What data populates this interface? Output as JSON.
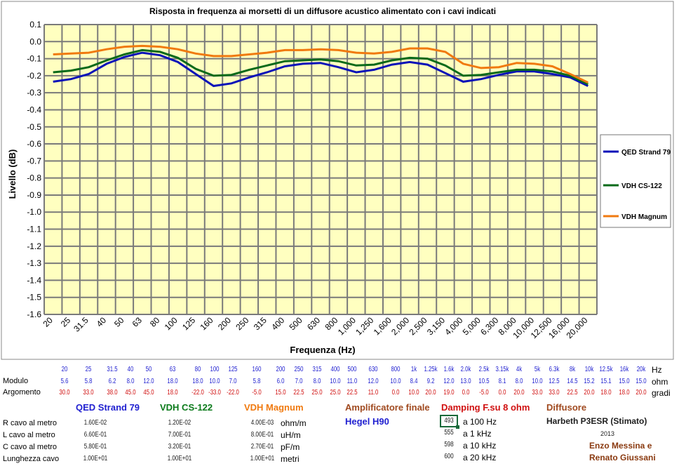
{
  "chart_data": {
    "type": "line",
    "title": "Risposta in frequenza ai morsetti di un diffusore acustico alimentato con i cavi indicati",
    "xlabel": "Frequenza (Hz)",
    "ylabel": "Livello (dB)",
    "ylim": [
      -1.6,
      0.1
    ],
    "yticks": [
      "0.1",
      "0.0",
      "-0.1",
      "-0.2",
      "-0.3",
      "-0.4",
      "-0.5",
      "-0.6",
      "-0.7",
      "-0.8",
      "-0.9",
      "-1.0",
      "-1.1",
      "-1.2",
      "-1.3",
      "-1.4",
      "-1.5",
      "-1.6"
    ],
    "categories": [
      "20",
      "25",
      "31.5",
      "40",
      "50",
      "63",
      "80",
      "100",
      "125",
      "160",
      "200",
      "250",
      "315",
      "400",
      "500",
      "630",
      "800",
      "1,000",
      "1,250",
      "1,600",
      "2,000",
      "2,500",
      "3,150",
      "4,000",
      "5,000",
      "6,300",
      "8,000",
      "10,000",
      "12,500",
      "16,000",
      "20,000"
    ],
    "grid": true,
    "legend_position": "right",
    "series": [
      {
        "name": "QED Strand 79",
        "color": "#0a12b8",
        "values": [
          -0.235,
          -0.22,
          -0.19,
          -0.13,
          -0.09,
          -0.065,
          -0.08,
          -0.12,
          -0.19,
          -0.26,
          -0.245,
          -0.21,
          -0.18,
          -0.145,
          -0.13,
          -0.125,
          -0.15,
          -0.18,
          -0.165,
          -0.135,
          -0.12,
          -0.135,
          -0.185,
          -0.235,
          -0.22,
          -0.195,
          -0.175,
          -0.175,
          -0.19,
          -0.21,
          -0.26
        ]
      },
      {
        "name": "VDH CS-122",
        "color": "#0a6a1a",
        "values": [
          -0.18,
          -0.17,
          -0.15,
          -0.11,
          -0.075,
          -0.05,
          -0.06,
          -0.095,
          -0.16,
          -0.2,
          -0.195,
          -0.165,
          -0.14,
          -0.115,
          -0.11,
          -0.105,
          -0.115,
          -0.14,
          -0.135,
          -0.11,
          -0.095,
          -0.1,
          -0.14,
          -0.2,
          -0.195,
          -0.18,
          -0.165,
          -0.165,
          -0.175,
          -0.2,
          -0.25
        ]
      },
      {
        "name": "VDH Magnum",
        "color": "#f07a10",
        "values": [
          -0.075,
          -0.07,
          -0.065,
          -0.045,
          -0.03,
          -0.025,
          -0.03,
          -0.045,
          -0.07,
          -0.085,
          -0.085,
          -0.075,
          -0.065,
          -0.05,
          -0.05,
          -0.045,
          -0.05,
          -0.065,
          -0.07,
          -0.06,
          -0.04,
          -0.04,
          -0.06,
          -0.13,
          -0.155,
          -0.15,
          -0.125,
          -0.13,
          -0.145,
          -0.19,
          -0.24
        ]
      }
    ]
  },
  "table": {
    "freq_row": [
      "20",
      "25",
      "31.5",
      "40",
      "50",
      "63",
      "80",
      "100",
      "125",
      "160",
      "200",
      "250",
      "315",
      "400",
      "500",
      "630",
      "800",
      "1k",
      "1.25k",
      "1.6k",
      "2.0k",
      "2.5k",
      "3.15k",
      "4k",
      "5k",
      "6.3k",
      "8k",
      "10k",
      "12.5k",
      "16k",
      "20k"
    ],
    "freq_unit": "Hz",
    "modulo_label": "Modulo",
    "modulo_row": [
      "5.6",
      "5.8",
      "6.2",
      "8.0",
      "12.0",
      "18.0",
      "18.0",
      "10.0",
      "7.0",
      "5.8",
      "6.0",
      "7.0",
      "8.0",
      "10.0",
      "11.0",
      "12.0",
      "10.0",
      "8.4",
      "9.2",
      "12.0",
      "13.0",
      "10.5",
      "8.1",
      "8.0",
      "10.0",
      "12.5",
      "14.5",
      "15.2",
      "15.1",
      "15.0",
      "15.0"
    ],
    "modulo_unit": "ohm",
    "argomento_label": "Argomento",
    "argomento_row": [
      "30.0",
      "33.0",
      "38.0",
      "45.0",
      "45.0",
      "18.0",
      "-22.0",
      "-33.0",
      "-22.0",
      "-5.0",
      "15.0",
      "22.5",
      "25.0",
      "25.0",
      "22.5",
      "11.0",
      "0.0",
      "10.0",
      "20.0",
      "19.0",
      "0.0",
      "-5.0",
      "0.0",
      "20.0",
      "33.0",
      "33.0",
      "22.5",
      "20.0",
      "18.0",
      "18.0",
      "20.0"
    ],
    "argomento_unit": "gradi"
  },
  "cables": {
    "headers": [
      "QED Strand 79",
      "VDH CS-122",
      "VDH Magnum"
    ],
    "rows": [
      {
        "label": "R cavo al metro",
        "values": [
          "1.60E-02",
          "1.20E-02",
          "4.00E-03"
        ],
        "unit": "ohm/m"
      },
      {
        "label": "L cavo al metro",
        "values": [
          "6.60E-01",
          "7.00E-01",
          "8.00E-01"
        ],
        "unit": "uH/m"
      },
      {
        "label": "C cavo al metro",
        "values": [
          "5.80E-01",
          "3.20E-01",
          "2.70E-01"
        ],
        "unit": "pF/m"
      },
      {
        "label": "Lunghezza cavo",
        "values": [
          "1.00E+01",
          "1.00E+01",
          "1.00E+01"
        ],
        "unit": "metri"
      }
    ]
  },
  "amplifier": {
    "title": "Amplificatore finale",
    "model": "Hegel H90"
  },
  "damping": {
    "title": "Damping F.su 8 ohm",
    "rows": [
      {
        "value": "493",
        "label": "a 100 Hz"
      },
      {
        "value": "555",
        "label": "a 1 kHz"
      },
      {
        "value": "598",
        "label": "a 10 kHz"
      },
      {
        "value": "600",
        "label": "a 20 kHz"
      }
    ]
  },
  "speaker": {
    "title": "Diffusore",
    "model": "Harbeth P3ESR (Stimato)",
    "year": "2013",
    "authors": [
      "Enzo Messina e",
      "Renato Giussani"
    ]
  }
}
